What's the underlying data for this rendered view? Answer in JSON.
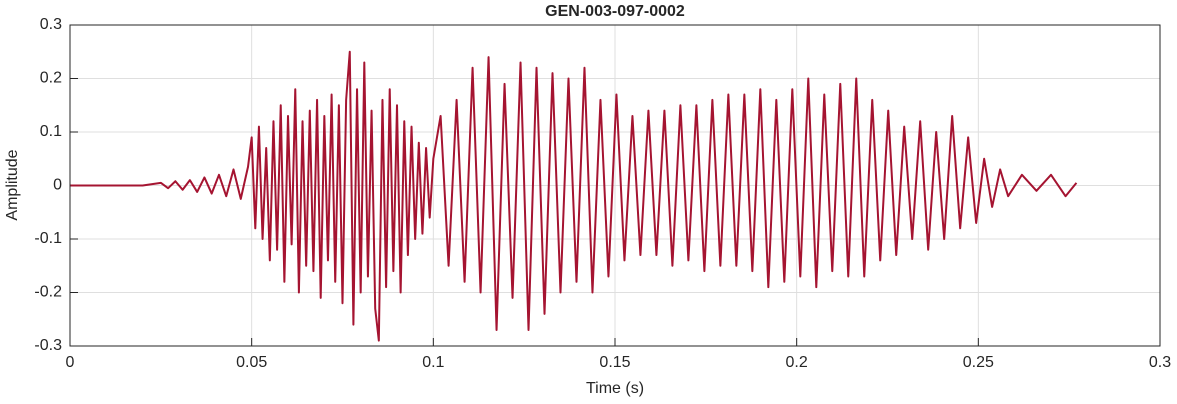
{
  "chart_data": {
    "type": "line",
    "title": "GEN-003-097-0002",
    "x_label": "Time (s)",
    "y_label": "Amplitude",
    "xlim": [
      0,
      0.3
    ],
    "ylim": [
      -0.3,
      0.3
    ],
    "xticks": [
      0,
      0.05,
      0.1,
      0.15,
      0.2,
      0.25,
      0.3
    ],
    "yticks": [
      -0.3,
      -0.2,
      -0.1,
      0,
      0.1,
      0.2,
      0.3
    ],
    "grid": true,
    "x": [
      0,
      0.01,
      0.02,
      0.025,
      0.027,
      0.029,
      0.031,
      0.033,
      0.035,
      0.037,
      0.039,
      0.041,
      0.043,
      0.045,
      0.047,
      0.049,
      0.05,
      0.051,
      0.052,
      0.053,
      0.054,
      0.055,
      0.056,
      0.057,
      0.058,
      0.059,
      0.06,
      0.061,
      0.062,
      0.063,
      0.064,
      0.065,
      0.066,
      0.067,
      0.068,
      0.069,
      0.07,
      0.071,
      0.072,
      0.073,
      0.074,
      0.075,
      0.076,
      0.077,
      0.078,
      0.079,
      0.08,
      0.081,
      0.082,
      0.083,
      0.084,
      0.085,
      0.086,
      0.087,
      0.088,
      0.089,
      0.09,
      0.091,
      0.092,
      0.093,
      0.094,
      0.095,
      0.096,
      0.097,
      0.098,
      0.099,
      0.1,
      0.102,
      0.1042,
      0.1064,
      0.1086,
      0.1108,
      0.113,
      0.1152,
      0.1174,
      0.1196,
      0.1218,
      0.124,
      0.1262,
      0.1284,
      0.1306,
      0.1328,
      0.135,
      0.1372,
      0.1394,
      0.1416,
      0.1438,
      0.146,
      0.1482,
      0.1504,
      0.1526,
      0.1548,
      0.157,
      0.1592,
      0.1614,
      0.1636,
      0.1658,
      0.168,
      0.1702,
      0.1724,
      0.1746,
      0.1768,
      0.179,
      0.1812,
      0.1834,
      0.1856,
      0.1878,
      0.19,
      0.1922,
      0.1944,
      0.1966,
      0.1988,
      0.201,
      0.2032,
      0.2054,
      0.2076,
      0.2098,
      0.212,
      0.2142,
      0.2164,
      0.2186,
      0.2208,
      0.223,
      0.2252,
      0.2274,
      0.2296,
      0.2318,
      0.234,
      0.2362,
      0.2384,
      0.2406,
      0.2428,
      0.245,
      0.2472,
      0.2494,
      0.2516,
      0.2538,
      0.256,
      0.2582,
      0.262,
      0.266,
      0.27,
      0.274,
      0.277
    ],
    "series": [
      {
        "color": "#a51431",
        "values": [
          0,
          0,
          0,
          0.005,
          -0.005,
          0.008,
          -0.008,
          0.01,
          -0.012,
          0.015,
          -0.015,
          0.02,
          -0.02,
          0.03,
          -0.025,
          0.035,
          0.09,
          -0.08,
          0.11,
          -0.1,
          0.07,
          -0.14,
          0.12,
          -0.12,
          0.15,
          -0.18,
          0.13,
          -0.11,
          0.18,
          -0.2,
          0.12,
          -0.15,
          0.14,
          -0.16,
          0.16,
          -0.21,
          0.13,
          -0.14,
          0.17,
          -0.18,
          0.15,
          -0.22,
          0.16,
          0.25,
          -0.26,
          0.18,
          -0.2,
          0.23,
          -0.17,
          0.14,
          -0.23,
          -0.29,
          0.16,
          -0.19,
          0.18,
          -0.16,
          0.15,
          -0.2,
          0.12,
          -0.13,
          0.11,
          -0.1,
          0.08,
          -0.09,
          0.07,
          -0.06,
          0.05,
          0.13,
          -0.15,
          0.16,
          -0.18,
          0.22,
          -0.2,
          0.24,
          -0.27,
          0.19,
          -0.21,
          0.23,
          -0.27,
          0.22,
          -0.24,
          0.21,
          -0.2,
          0.2,
          -0.18,
          0.22,
          -0.2,
          0.16,
          -0.17,
          0.17,
          -0.14,
          0.13,
          -0.13,
          0.14,
          -0.13,
          0.14,
          -0.15,
          0.15,
          -0.14,
          0.15,
          -0.16,
          0.16,
          -0.15,
          0.17,
          -0.15,
          0.17,
          -0.16,
          0.18,
          -0.19,
          0.16,
          -0.18,
          0.18,
          -0.17,
          0.2,
          -0.19,
          0.17,
          -0.16,
          0.19,
          -0.17,
          0.2,
          -0.17,
          0.16,
          -0.14,
          0.14,
          -0.13,
          0.11,
          -0.1,
          0.12,
          -0.12,
          0.1,
          -0.1,
          0.13,
          -0.08,
          0.09,
          -0.07,
          0.05,
          -0.04,
          0.03,
          -0.02,
          0.02,
          -0.01,
          0.02,
          -0.02,
          0.005
        ]
      }
    ]
  }
}
